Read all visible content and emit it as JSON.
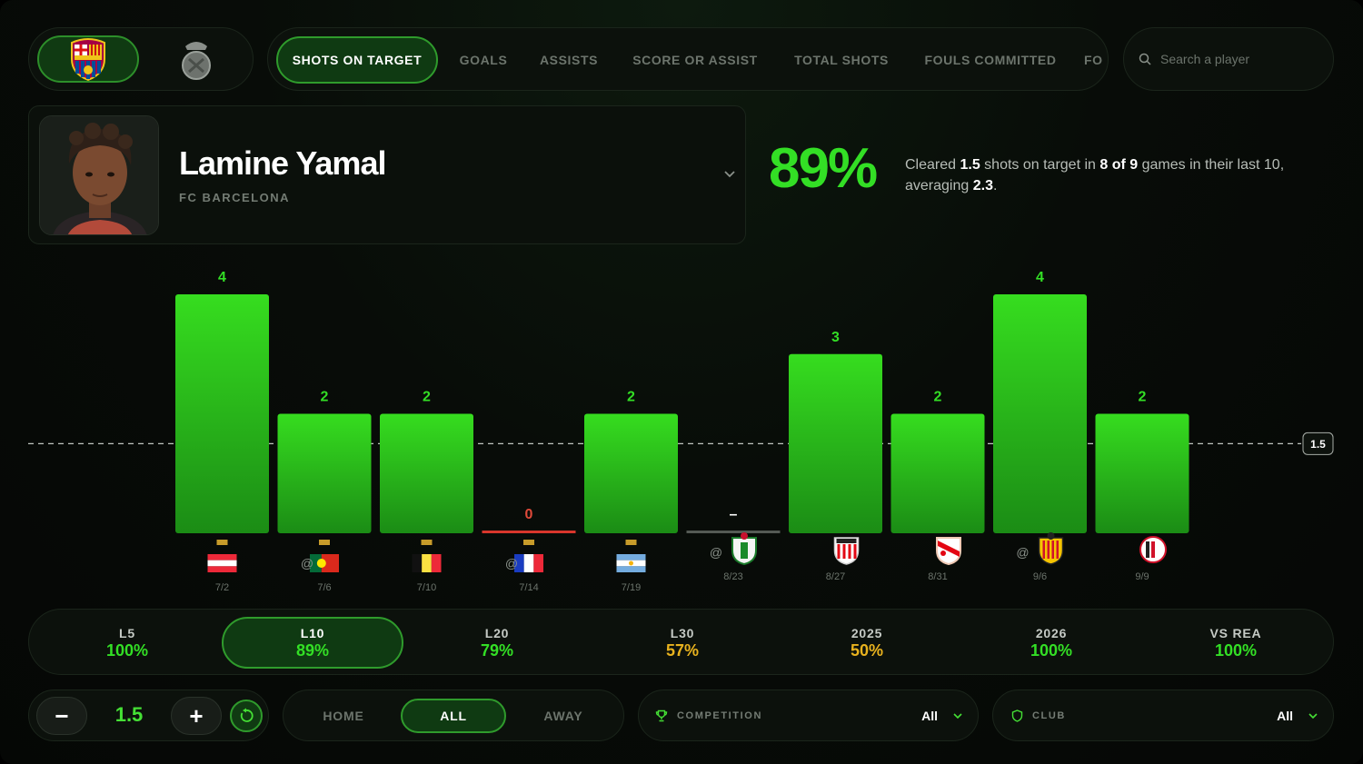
{
  "teams": [
    {
      "name": "FC Barcelona",
      "icon": "barcelona-crest-icon",
      "active": true
    },
    {
      "name": "Real Madrid",
      "icon": "real-madrid-crest-icon",
      "active": false
    }
  ],
  "tabs": [
    "SHOTS ON TARGET",
    "GOALS",
    "ASSISTS",
    "SCORE OR ASSIST",
    "TOTAL SHOTS",
    "FOULS COMMITTED",
    "FO"
  ],
  "search": {
    "placeholder": "Search a player"
  },
  "player": {
    "name": "Lamine Yamal",
    "team": "FC BARCELONA"
  },
  "summary": {
    "pct": "89%",
    "t1": "Cleared ",
    "line": "1.5",
    "t2": " shots on target in ",
    "record": "8 of 9",
    "t3": " games in their last 10, averaging ",
    "avg": "2.3",
    "t4": "."
  },
  "chart_data": {
    "type": "bar",
    "line": 1.5,
    "line_label": "1.5",
    "ylim": [
      0,
      4
    ],
    "categories": [
      "7/2",
      "7/6",
      "7/10",
      "7/14",
      "7/19",
      "8/23",
      "8/27",
      "8/31",
      "9/6",
      "9/9"
    ],
    "values": [
      4,
      2,
      2,
      0,
      2,
      null,
      3,
      2,
      4,
      2
    ],
    "labels": [
      "4",
      "2",
      "2",
      "0",
      "2",
      "–",
      "3",
      "2",
      "4",
      "2"
    ],
    "away": [
      false,
      true,
      false,
      true,
      false,
      true,
      false,
      false,
      true,
      false
    ],
    "opponents": [
      "austria-flag-icon",
      "portugal-flag-icon",
      "belgium-flag-icon",
      "france-flag-icon",
      "argentina-flag-icon",
      "elche-crest-icon",
      "athletic-bilbao-crest-icon",
      "rayo-vallecano-crest-icon",
      "valencia-crest-icon",
      "feyenoord-crest-icon"
    ],
    "away_marker": "@"
  },
  "timeframes": [
    {
      "label": "L5",
      "value": "100%",
      "color": "#33df25"
    },
    {
      "label": "L10",
      "value": "89%",
      "color": "#33df25",
      "active": true
    },
    {
      "label": "L20",
      "value": "79%",
      "color": "#33df25"
    },
    {
      "label": "L30",
      "value": "57%",
      "color": "#e8b21e"
    },
    {
      "label": "2025",
      "value": "50%",
      "color": "#e8b21e"
    },
    {
      "label": "2026",
      "value": "100%",
      "color": "#33df25"
    },
    {
      "label": "VS REA",
      "value": "100%",
      "color": "#33df25"
    }
  ],
  "line_control": {
    "value": "1.5",
    "minus": "−",
    "plus": "+"
  },
  "venue": {
    "options": [
      "HOME",
      "ALL",
      "AWAY"
    ],
    "selected": "ALL"
  },
  "filters": {
    "competition": {
      "label": "COMPETITION",
      "value": "All",
      "icon": "trophy-icon"
    },
    "club": {
      "label": "CLUB",
      "value": "All",
      "icon": "shield-icon"
    }
  },
  "colors": {
    "accent": "#33df25",
    "negative": "#e04a3a",
    "warning": "#e8b21e"
  }
}
